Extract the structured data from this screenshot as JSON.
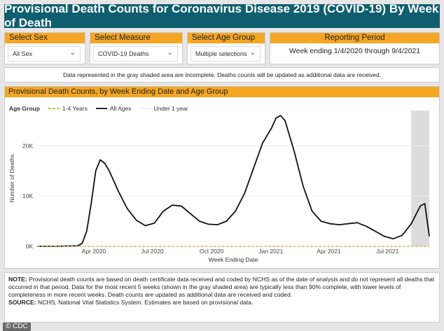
{
  "title": "Provisional Death Counts for Coronavirus Disease 2019 (COVID-19) By Week of Death",
  "filters": {
    "sex": {
      "label": "Select Sex",
      "value": "All Sex"
    },
    "measure": {
      "label": "Select Measure",
      "value": "COVID-19 Deaths"
    },
    "age_group": {
      "label": "Select Age Group",
      "value": "Multiple selections"
    },
    "reporting_period": {
      "label": "Reporting Period",
      "value": "Week ending 1/4/2020 through 9/4/2021"
    }
  },
  "notice": "Data represented in the gray shaded area are incomplete. Deaths counts will be updated as additional data are received.",
  "chart": {
    "header": "Provisional Death Counts, by Week Ending Date and Age Group",
    "legend_title": "Age Group",
    "legend": [
      "1-4 Years",
      "All Ages",
      "Under 1 year"
    ]
  },
  "chart_data": {
    "type": "line",
    "xlabel": "Week Ending Date",
    "ylabel": "Number of Deaths",
    "x_tick_labels": [
      "Apr 2020",
      "Jul 2020",
      "Oct 2020",
      "Jan 2021",
      "Apr 2021",
      "Jul 2021"
    ],
    "y_tick_labels": [
      "0K",
      "10K",
      "20K"
    ],
    "ylim": [
      0,
      27000
    ],
    "xlim": [
      "2020-01-04",
      "2021-09-04"
    ],
    "incomplete_range": [
      "2021-08-07",
      "2021-09-04"
    ],
    "series": [
      {
        "name": "All Ages",
        "color": "#111111",
        "x": [
          "2020-01-04",
          "2020-02-01",
          "2020-03-07",
          "2020-03-14",
          "2020-03-21",
          "2020-03-28",
          "2020-04-04",
          "2020-04-11",
          "2020-04-18",
          "2020-04-25",
          "2020-05-09",
          "2020-05-23",
          "2020-06-06",
          "2020-06-20",
          "2020-07-04",
          "2020-07-18",
          "2020-08-01",
          "2020-08-15",
          "2020-08-29",
          "2020-09-12",
          "2020-09-26",
          "2020-10-10",
          "2020-10-24",
          "2020-11-07",
          "2020-11-21",
          "2020-12-05",
          "2020-12-19",
          "2021-01-02",
          "2021-01-09",
          "2021-01-16",
          "2021-01-23",
          "2021-02-06",
          "2021-02-20",
          "2021-03-06",
          "2021-03-20",
          "2021-04-03",
          "2021-04-17",
          "2021-05-01",
          "2021-05-15",
          "2021-05-29",
          "2021-06-12",
          "2021-06-26",
          "2021-07-10",
          "2021-07-24",
          "2021-08-07",
          "2021-08-21",
          "2021-08-28",
          "2021-09-04"
        ],
        "y": [
          0,
          0,
          100,
          600,
          3000,
          8500,
          15000,
          17200,
          16500,
          15000,
          11000,
          7500,
          5200,
          4100,
          4600,
          7000,
          8200,
          8000,
          6500,
          5000,
          4400,
          4300,
          5000,
          7000,
          10500,
          15500,
          20500,
          23500,
          25500,
          26000,
          25000,
          19000,
          12000,
          7000,
          5000,
          4500,
          4300,
          4500,
          4700,
          4000,
          3000,
          2000,
          1500,
          2200,
          4500,
          8000,
          8500,
          2000
        ]
      },
      {
        "name": "1-4 Years",
        "color": "#c9a21a",
        "values_note": "near zero",
        "x": [
          "2020-01-04",
          "2021-09-04"
        ],
        "y": [
          0,
          0
        ]
      },
      {
        "name": "Under 1 year",
        "color": "#d8cf8a",
        "x": [
          "2020-01-04",
          "2021-09-04"
        ],
        "y": [
          0,
          0
        ]
      }
    ]
  },
  "notes": {
    "note_label": "NOTE:",
    "note_text": " Provisional death counts are based on death certificate data received and coded by NCHS as of the date of analysis and do not represent all deaths that occurred in that period. Data for the most recent 5 weeks (shown in the gray shaded area) are typically less than 90% complete, with lower levels of completeness in more recent weeks.  Death counts are updated as additional data are received and coded.",
    "source_label": "SOURCE:",
    "source_text": " NCHS, National Vital Statistics System. Estimates are based on provisional data."
  },
  "credit": "© CDC"
}
